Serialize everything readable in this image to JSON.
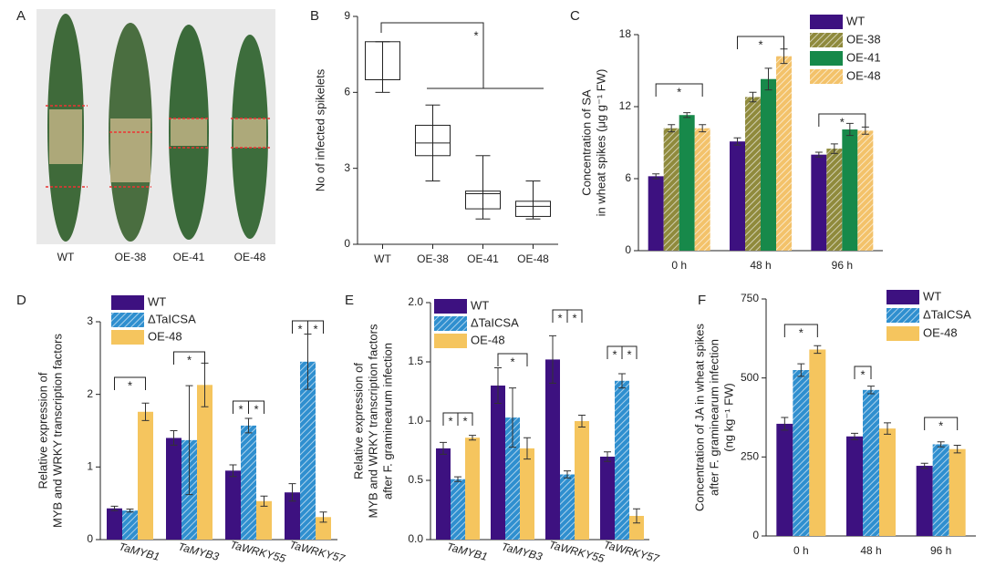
{
  "photo_panel": {
    "panel_label": "A",
    "labels": [
      "WT",
      "OE-38",
      "OE-41",
      "OE-48"
    ]
  },
  "chart_data": [
    {
      "type": "box",
      "panel_label": "B",
      "ylabel": [
        "No of infected spikelets"
      ],
      "categories": [
        "WT",
        "OE-38",
        "OE-41",
        "OE-48"
      ],
      "boxes": [
        {
          "min": 6,
          "q1": 6.5,
          "median": 6.5,
          "q3": 8,
          "max": 8
        },
        {
          "min": 2.5,
          "q1": 3.5,
          "median": 4,
          "q3": 4.7,
          "max": 5.5
        },
        {
          "min": 1,
          "q1": 1.4,
          "median": 2,
          "q3": 2.1,
          "max": 3.5
        },
        {
          "min": 1,
          "q1": 1.1,
          "median": 1.5,
          "q3": 1.7,
          "max": 2.5
        }
      ],
      "ylim": [
        0,
        9
      ],
      "yticks": [
        0,
        3,
        6,
        9
      ],
      "annotations": [
        "*"
      ]
    },
    {
      "type": "bar",
      "panel_label": "C",
      "ylabel": [
        "Concentration of SA",
        "in wheat spikes (μg g⁻¹ FW)"
      ],
      "categories": [
        "0 h",
        "48 h",
        "96 h"
      ],
      "series": [
        {
          "name": "WT",
          "color": "#3d1180",
          "hatch": false,
          "values": [
            6.2,
            9.1,
            8.0
          ],
          "errors": [
            0.2,
            0.3,
            0.2
          ]
        },
        {
          "name": "OE-38",
          "color": "#8f8a3c",
          "hatch": true,
          "values": [
            10.2,
            12.8,
            8.5
          ],
          "errors": [
            0.3,
            0.4,
            0.4
          ]
        },
        {
          "name": "OE-41",
          "color": "#17894a",
          "hatch": false,
          "values": [
            11.3,
            14.3,
            10.1
          ],
          "errors": [
            0.2,
            0.9,
            0.5
          ]
        },
        {
          "name": "OE-48",
          "color": "#f3c26a",
          "hatch": true,
          "values": [
            10.2,
            16.2,
            10.0
          ],
          "errors": [
            0.3,
            0.6,
            0.3
          ]
        }
      ],
      "ylim": [
        0,
        18
      ],
      "yticks": [
        0,
        6,
        12,
        18
      ],
      "annotations": [
        "*",
        "*",
        "*"
      ]
    },
    {
      "type": "bar",
      "panel_label": "D",
      "ylabel": [
        "Relative expression of",
        "MYB and WRKY transcription factors"
      ],
      "categories": [
        "TaMYB1",
        "TaMYB3",
        "TaWRKY55",
        "TaWRKY57"
      ],
      "series": [
        {
          "name": "WT",
          "color": "#3d1180",
          "hatch": false,
          "values": [
            0.43,
            1.4,
            0.95,
            0.65
          ],
          "errors": [
            0.03,
            0.1,
            0.08,
            0.12
          ]
        },
        {
          "name": "ΔTaICSA",
          "color": "#2f8fcf",
          "hatch": true,
          "values": [
            0.4,
            1.37,
            1.57,
            2.45
          ],
          "errors": [
            0.02,
            0.75,
            0.1,
            0.38
          ]
        },
        {
          "name": "OE-48",
          "color": "#f5c55e",
          "hatch": false,
          "values": [
            1.76,
            2.13,
            0.53,
            0.31
          ],
          "errors": [
            0.12,
            0.3,
            0.07,
            0.07
          ]
        }
      ],
      "ylim": [
        0,
        3
      ],
      "yticks": [
        0,
        1,
        2,
        3
      ],
      "annotations": [
        "*",
        "*",
        "*",
        "*",
        "*",
        "*"
      ]
    },
    {
      "type": "bar",
      "panel_label": "E",
      "ylabel": [
        "Relative expression of",
        "MYB and WRKY transcription factors",
        "after F. graminearum infection"
      ],
      "categories": [
        "TaMYB1",
        "TaMYB3",
        "TaWRKY55",
        "TaWRKY57"
      ],
      "series": [
        {
          "name": "WT",
          "color": "#3d1180",
          "hatch": false,
          "values": [
            0.77,
            1.3,
            1.52,
            0.7
          ],
          "errors": [
            0.05,
            0.15,
            0.2,
            0.04
          ]
        },
        {
          "name": "ΔTaICSA",
          "color": "#2f8fcf",
          "hatch": true,
          "values": [
            0.51,
            1.03,
            0.55,
            1.34
          ],
          "errors": [
            0.02,
            0.25,
            0.03,
            0.06
          ]
        },
        {
          "name": "OE-48",
          "color": "#f5c55e",
          "hatch": false,
          "values": [
            0.86,
            0.77,
            1.0,
            0.2
          ],
          "errors": [
            0.02,
            0.09,
            0.05,
            0.06
          ]
        }
      ],
      "ylim": [
        0,
        2.0
      ],
      "yticks": [
        {
          "value": 0,
          "label": "0.0"
        },
        0.5,
        {
          "value": 1,
          "label": "1.0"
        },
        1.5,
        {
          "value": 2,
          "label": "2.0"
        }
      ],
      "annotations": [
        "*",
        "*",
        "*",
        "*",
        "*",
        "*",
        "*"
      ]
    },
    {
      "type": "bar",
      "panel_label": "F",
      "ylabel": [
        "Concentration of JA in wheat spikes",
        "after F. graminearum infection",
        "(ng kg⁻¹ FW)"
      ],
      "categories": [
        "0 h",
        "48 h",
        "96 h"
      ],
      "series": [
        {
          "name": "WT",
          "color": "#3d1180",
          "hatch": false,
          "values": [
            355,
            315,
            222
          ],
          "errors": [
            20,
            10,
            8
          ]
        },
        {
          "name": "ΔTaICSA",
          "color": "#2f8fcf",
          "hatch": true,
          "values": [
            525,
            462,
            290
          ],
          "errors": [
            20,
            12,
            8
          ]
        },
        {
          "name": "OE-48",
          "color": "#f5c55e",
          "hatch": false,
          "values": [
            590,
            340,
            275
          ],
          "errors": [
            12,
            18,
            12
          ]
        }
      ],
      "ylim": [
        0,
        750
      ],
      "yticks": [
        0,
        250,
        500,
        750
      ],
      "annotations": [
        "*",
        "*",
        "*"
      ]
    }
  ]
}
